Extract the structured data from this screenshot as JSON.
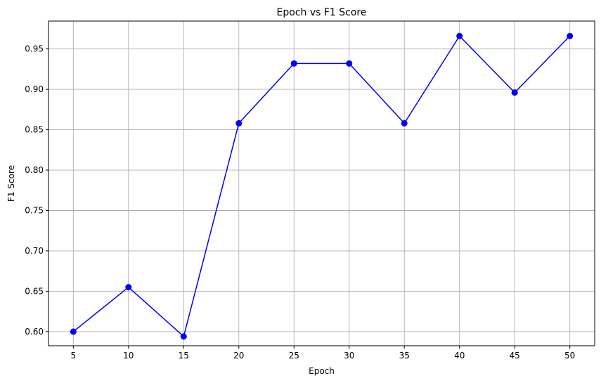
{
  "chart_data": {
    "type": "line",
    "title": "Epoch vs F1 Score",
    "xlabel": "Epoch",
    "ylabel": "F1 Score",
    "x": [
      5,
      10,
      15,
      20,
      25,
      30,
      35,
      40,
      45,
      50
    ],
    "series": [
      {
        "values": [
          0.6,
          0.655,
          0.594,
          0.858,
          0.932,
          0.932,
          0.858,
          0.966,
          0.896,
          0.966
        ],
        "color": "#0000ff",
        "marker": "circle"
      }
    ],
    "xticks": [
      5,
      10,
      15,
      20,
      25,
      30,
      35,
      40,
      45,
      50
    ],
    "xtick_labels": [
      "5",
      "10",
      "15",
      "20",
      "25",
      "30",
      "35",
      "40",
      "45",
      "50"
    ],
    "yticks": [
      0.6,
      0.65,
      0.7,
      0.75,
      0.8,
      0.85,
      0.9,
      0.95
    ],
    "ytick_labels": [
      "0.60",
      "0.65",
      "0.70",
      "0.75",
      "0.80",
      "0.85",
      "0.90",
      "0.95"
    ],
    "xlim": [
      2.75,
      52.25
    ],
    "ylim": [
      0.5825,
      0.9845
    ],
    "grid": true,
    "grid_color": "#b0b0b0",
    "axis_color": "#000000"
  }
}
